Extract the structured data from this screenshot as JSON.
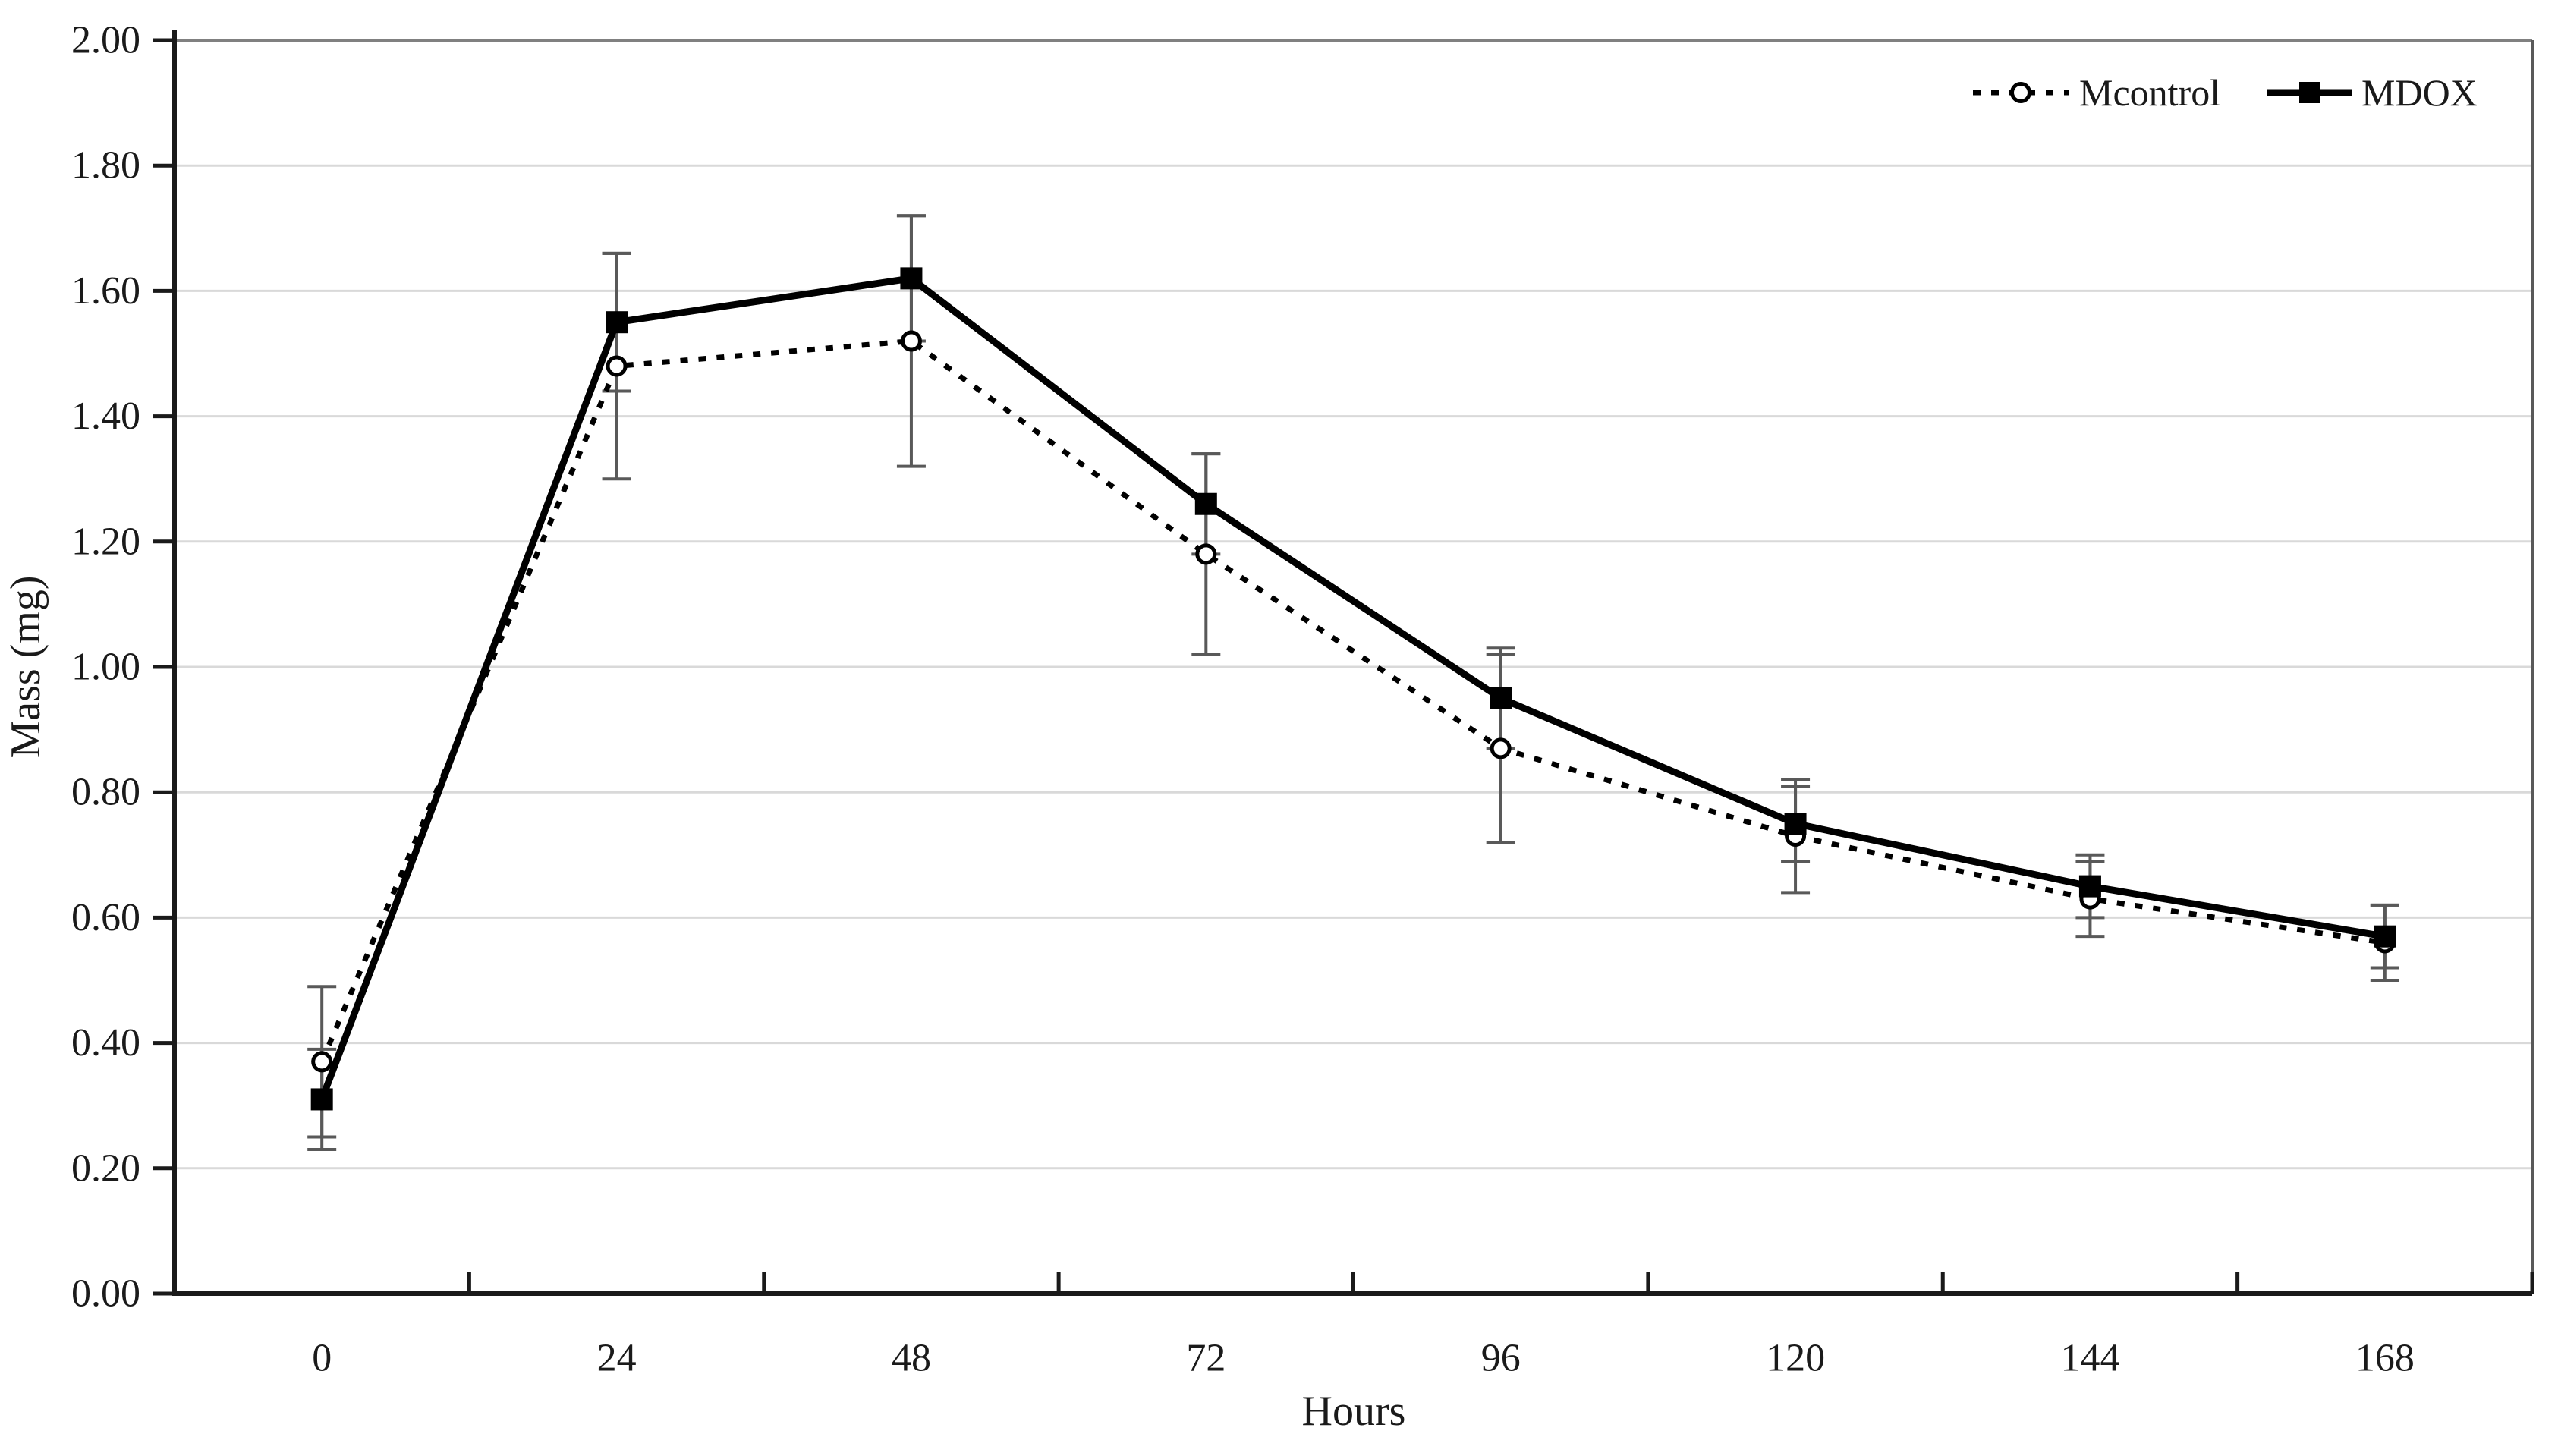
{
  "chart_data": {
    "type": "line",
    "title": "",
    "xlabel": "Hours",
    "ylabel": "Mass (mg)",
    "x": [
      0,
      24,
      48,
      72,
      96,
      120,
      144,
      168
    ],
    "x_tick_labels": [
      "0",
      "24",
      "48",
      "72",
      "96",
      "120",
      "144",
      "168"
    ],
    "ylim": [
      0.0,
      2.0
    ],
    "ytick_step": 0.2,
    "ytick_decimals": 2,
    "grid": true,
    "legend_position": "top-right-inside",
    "series": [
      {
        "name": "Mcontrol",
        "style": "dotted",
        "marker": "open-circle",
        "values": [
          0.37,
          1.48,
          1.52,
          1.18,
          0.87,
          0.73,
          0.63,
          0.56
        ],
        "errors": [
          0.12,
          0.18,
          0.2,
          0.16,
          0.15,
          0.09,
          0.06,
          0.06
        ]
      },
      {
        "name": "MDOX",
        "style": "solid",
        "marker": "filled-square",
        "values": [
          0.31,
          1.55,
          1.62,
          1.26,
          0.95,
          0.75,
          0.65,
          0.57
        ],
        "errors": [
          0.08,
          0.11,
          0.1,
          0.08,
          0.08,
          0.06,
          0.05,
          0.05
        ]
      }
    ],
    "colors": {
      "series": "#000000",
      "error_bar": "#595959",
      "gridline": "#d9d9d9",
      "axis": "#1a1a1a",
      "plot_border": "#808080",
      "background": "#ffffff"
    }
  }
}
